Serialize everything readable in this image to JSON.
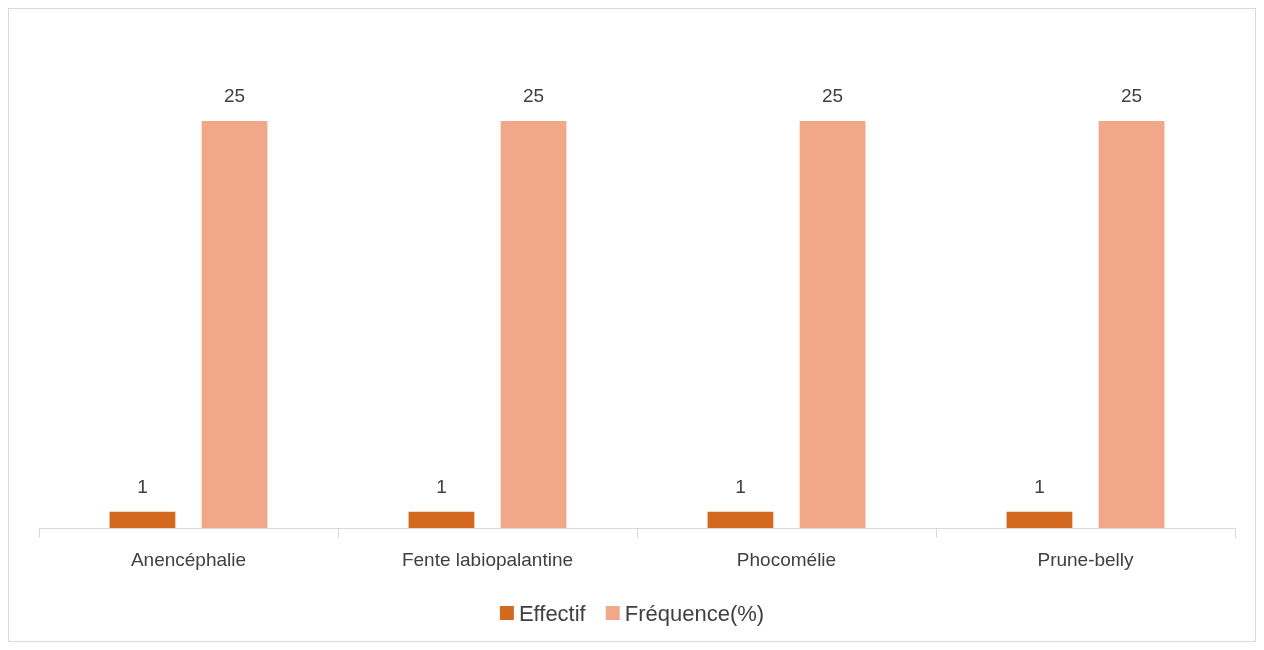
{
  "chart_data": {
    "type": "bar",
    "categories": [
      "Anencéphalie",
      "Fente labiopalantine",
      "Phocomélie",
      "Prune-belly"
    ],
    "series": [
      {
        "name": "Effectif",
        "color": "#d2691e",
        "values": [
          1,
          1,
          1,
          1
        ]
      },
      {
        "name": "Fréquence(%)",
        "color": "#f0a889",
        "values": [
          25,
          25,
          25,
          25
        ]
      }
    ],
    "data_labels": true,
    "legend": "bottom"
  }
}
